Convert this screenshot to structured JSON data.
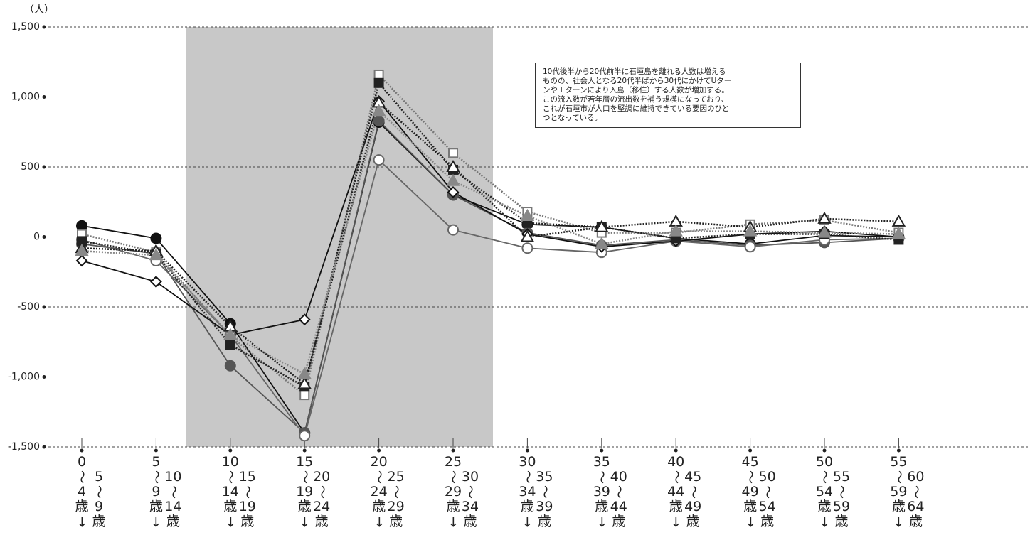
{
  "chart_data": {
    "type": "line",
    "y_unit": "（人）",
    "annotation": [
      "10代後半から20代前半に石垣島を離れる人数は増える",
      "ものの、社会人となる20代半ばから30代にかけてUター",
      "ンやＩターンにより入島（移住）する人数が増加する。",
      "この流入数が若年層の流出数を補う規模になっており、",
      "これが石垣市が人口を堅調に維持できている要因のひと",
      "つとなっている。"
    ],
    "categories": [
      "0～4歳→\n5～9歳",
      "5～9歳→\n10～14歳",
      "10～14歳→\n15～19歳",
      "15～19歳→\n20～24歳",
      "20～24歳→\n25～29歳",
      "25～29歳→\n30～34歳",
      "30～34歳→\n35～39歳",
      "35～39歳→\n40～44歳",
      "40～44歳→\n45～49歳",
      "45～49歳→\n50～54歳",
      "50～54歳→\n55～59歳",
      "55～59歳→\n60～64歳"
    ],
    "ylim": [
      -1500,
      1500
    ],
    "yticks": [
      {
        "value": -1500,
        "label": "-1,500"
      },
      {
        "value": -1000,
        "label": "-1,000"
      },
      {
        "value": -500,
        "label": "-500"
      },
      0,
      500,
      {
        "value": 1000,
        "label": "1,000"
      },
      {
        "value": 1500,
        "label": "1,500"
      }
    ],
    "grid": true,
    "series": [
      {
        "color": "#111111",
        "marker": "circle",
        "filled": true,
        "dash": "solid",
        "values": [
          80,
          -10,
          -620,
          -1400,
          820,
          300,
          90,
          70,
          -10,
          -50,
          10,
          0
        ]
      },
      {
        "color": "#555555",
        "marker": "circle",
        "filled": true,
        "dash": "solid",
        "values": [
          -50,
          -120,
          -920,
          -1400,
          830,
          300,
          30,
          -60,
          -20,
          -60,
          -40,
          -10
        ]
      },
      {
        "color": "#666666",
        "marker": "circle",
        "filled": false,
        "dash": "solid",
        "values": [
          -20,
          -170,
          -700,
          -1420,
          550,
          50,
          -80,
          -110,
          -30,
          -70,
          -20,
          -10
        ]
      },
      {
        "color": "#111111",
        "marker": "diamond",
        "filled": false,
        "dash": "solid",
        "values": [
          -170,
          -320,
          -700,
          -590,
          970,
          320,
          20,
          -70,
          -30,
          20,
          40,
          0
        ]
      },
      {
        "color": "#777777",
        "marker": "square",
        "filled": false,
        "dash": "dotted",
        "values": [
          20,
          -110,
          -710,
          -1130,
          1160,
          600,
          180,
          30,
          30,
          90,
          120,
          30
        ]
      },
      {
        "color": "#222222",
        "marker": "square",
        "filled": true,
        "dash": "dotted",
        "values": [
          -30,
          -120,
          -770,
          -1070,
          1100,
          480,
          100,
          70,
          -10,
          20,
          20,
          -20
        ]
      },
      {
        "color": "#222222",
        "marker": "triangle",
        "filled": false,
        "dash": "dotted",
        "values": [
          -80,
          -100,
          -640,
          -1050,
          960,
          500,
          0,
          70,
          110,
          70,
          130,
          110
        ]
      },
      {
        "color": "#888888",
        "marker": "triangle",
        "filled": true,
        "dash": "dotted",
        "values": [
          -100,
          -130,
          -700,
          -980,
          900,
          400,
          150,
          -50,
          40,
          40,
          30,
          20
        ]
      }
    ]
  }
}
